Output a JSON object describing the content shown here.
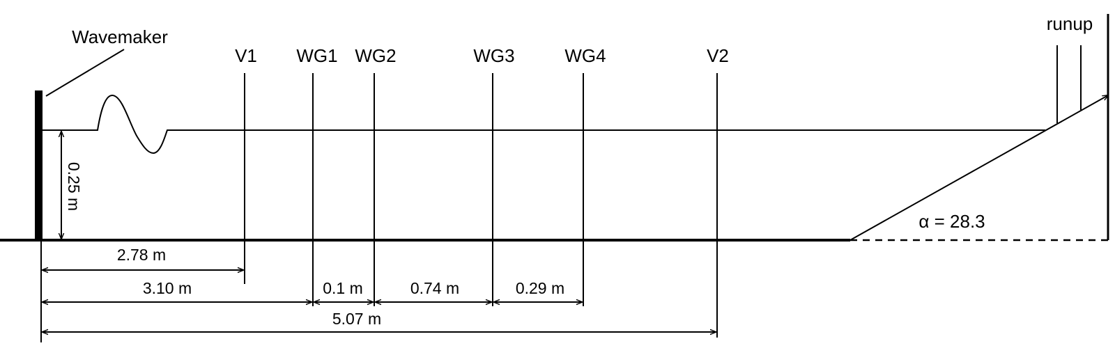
{
  "labels": {
    "wavemaker": "Wavemaker",
    "runup": "runup",
    "depth": "0.25 m",
    "angle": "α = 28.3"
  },
  "gauges": {
    "v1": "V1",
    "wg1": "WG1",
    "wg2": "WG2",
    "wg3": "WG3",
    "wg4": "WG4",
    "v2": "V2"
  },
  "dimensions": {
    "d_2_78": "2.78 m",
    "d_3_10": "3.10 m",
    "d_0_1": "0.1 m",
    "d_0_74": "0.74 m",
    "d_0_29": "0.29 m",
    "d_5_07": "5.07 m"
  }
}
